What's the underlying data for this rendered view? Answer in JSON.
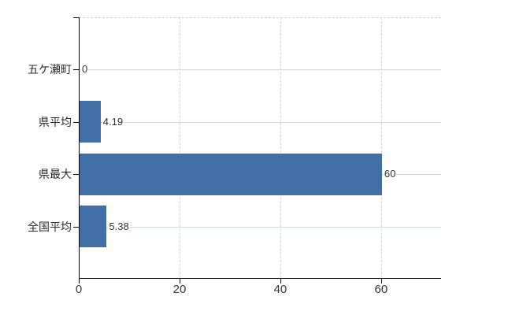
{
  "chart_data": {
    "type": "bar",
    "orientation": "horizontal",
    "categories": [
      "五ケ瀬町",
      "県平均",
      "県最大",
      "全国平均"
    ],
    "values": [
      0,
      4.19,
      60,
      5.38
    ],
    "value_labels": [
      "0",
      "4.19",
      "60",
      "5.38"
    ],
    "x_ticks": [
      0,
      20,
      40,
      60
    ],
    "x_tick_labels": [
      "0",
      "20",
      "40",
      "60"
    ],
    "xlim": [
      0,
      71.9
    ],
    "grid": true,
    "legend": "none",
    "bar_color": "#4170a9"
  },
  "colors": {
    "background": "#ffffff",
    "bar": "#4170a9",
    "axis": "#000000",
    "h_gridline": "#d4dbd4",
    "v_gridline": "#d7d5da",
    "top_border": "#cbd1cb",
    "label_text": "#2b2b2b",
    "value_text": "#333333"
  }
}
